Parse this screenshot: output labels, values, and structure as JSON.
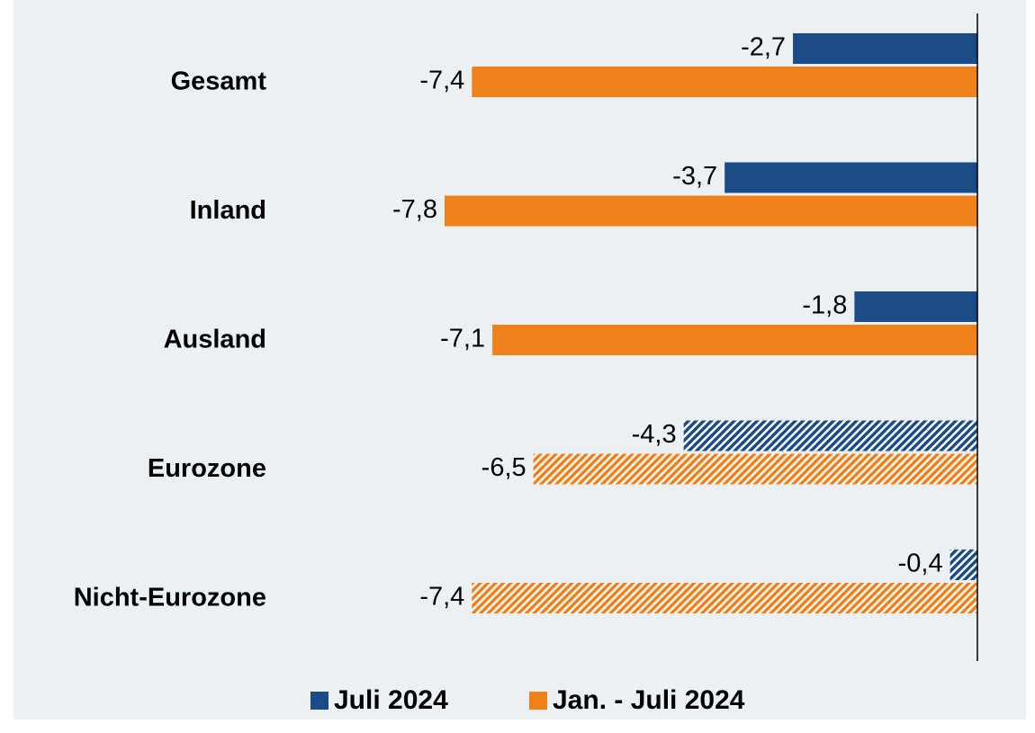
{
  "chart_data": {
    "type": "hbar",
    "categories": [
      "Gesamt",
      "Inland",
      "Ausland",
      "Eurozone",
      "Nicht-Eurozone"
    ],
    "series": [
      {
        "name": "Juli 2024",
        "color": "#1b4c88",
        "values": [
          -2.7,
          -3.7,
          -1.8,
          -4.3,
          -0.4
        ],
        "value_labels": [
          "-2,7",
          "-3,7",
          "-1,8",
          "-4,3",
          "-0,4"
        ]
      },
      {
        "name": "Jan. - Juli 2024",
        "color": "#f08019",
        "values": [
          -7.4,
          -7.8,
          -7.1,
          -6.5,
          -7.4
        ],
        "value_labels": [
          "-7,4",
          "-7,8",
          "-7,1",
          "-6,5",
          "-7,4"
        ]
      }
    ],
    "hatched": [
      false,
      false,
      false,
      true,
      true
    ],
    "xlim": [
      -10,
      0
    ],
    "legend": "bottom"
  }
}
